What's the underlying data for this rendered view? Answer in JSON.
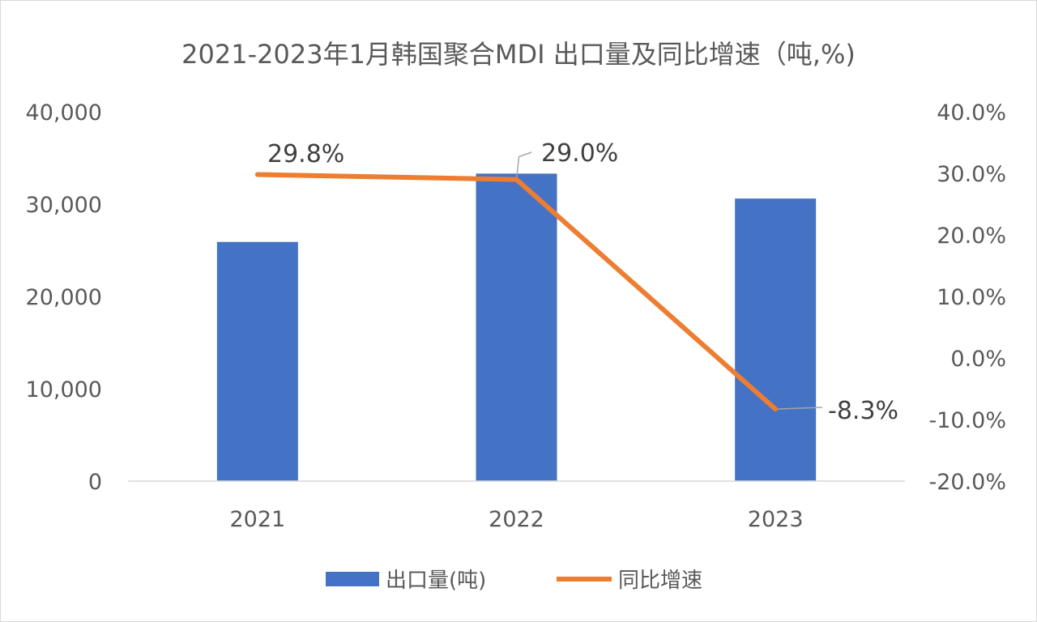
{
  "chart_data": {
    "type": "bar",
    "title": "2021-2023年1月韩国聚合MDI 出口量及同比增速（吨,%)",
    "categories": [
      "2021",
      "2022",
      "2023"
    ],
    "series": [
      {
        "name": "出口量(吨)",
        "type": "bar",
        "axis": "left",
        "color": "#4472C4",
        "values": [
          25900,
          33300,
          30600
        ]
      },
      {
        "name": "同比增速",
        "type": "line",
        "axis": "right",
        "color": "#ED7D31",
        "values": [
          29.8,
          29.0,
          -8.3
        ],
        "labels": [
          "29.8%",
          "29.0%",
          "-8.3%"
        ]
      }
    ],
    "y_left": {
      "range": [
        0,
        40000
      ],
      "ticks": [
        "0",
        "10,000",
        "20,000",
        "30,000",
        "40,000"
      ],
      "tick_values": [
        0,
        10000,
        20000,
        30000,
        40000
      ]
    },
    "y_right": {
      "range": [
        -20,
        40
      ],
      "ticks": [
        "-20.0%",
        "-10.0%",
        "0.0%",
        "10.0%",
        "20.0%",
        "30.0%",
        "40.0%"
      ],
      "tick_values": [
        -20,
        -10,
        0,
        10,
        20,
        30,
        40
      ]
    },
    "grid": false,
    "legend": "bottom"
  }
}
